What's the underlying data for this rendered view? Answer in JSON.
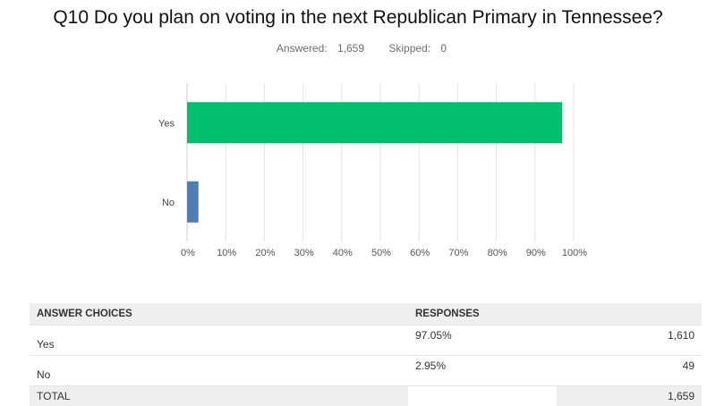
{
  "title": "Q10 Do you plan on voting in the next Republican Primary in Tennessee?",
  "answered_label": "Answered:",
  "answered_value": "1,659",
  "skipped_label": "Skipped:",
  "skipped_value": "0",
  "chart_data": {
    "type": "bar",
    "orientation": "horizontal",
    "categories": [
      "Yes",
      "No"
    ],
    "values": [
      97.05,
      2.95
    ],
    "colors": [
      "#00bf6f",
      "#507cb6"
    ],
    "xlim": [
      0,
      100
    ],
    "xticks": [
      "0%",
      "10%",
      "20%",
      "30%",
      "40%",
      "50%",
      "60%",
      "70%",
      "80%",
      "90%",
      "100%"
    ],
    "grid": true
  },
  "table": {
    "headers": [
      "ANSWER CHOICES",
      "RESPONSES"
    ],
    "rows": [
      {
        "choice": "Yes",
        "percent": "97.05%",
        "count": "1,610"
      },
      {
        "choice": "No",
        "percent": "2.95%",
        "count": "49"
      }
    ],
    "total_label": "TOTAL",
    "total_count": "1,659"
  }
}
